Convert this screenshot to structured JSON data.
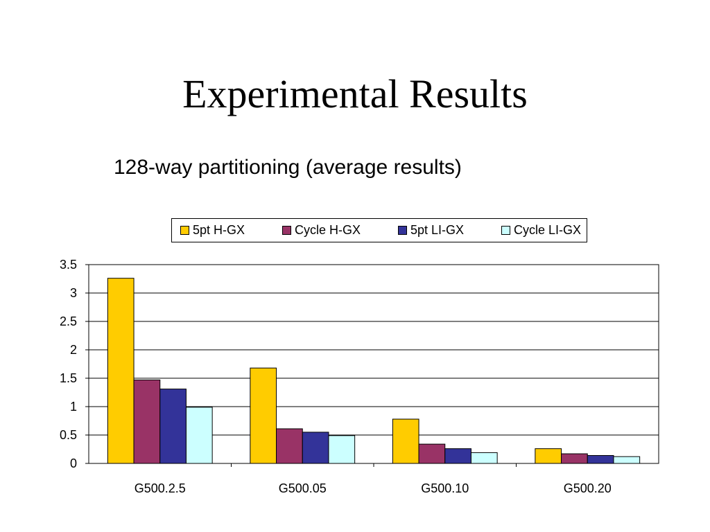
{
  "slide": {
    "title": "Experimental Results",
    "subtitle": "128-way partitioning (average results)"
  },
  "chart_data": {
    "type": "bar",
    "categories": [
      "G500.2.5",
      "G500.05",
      "G500.10",
      "G500.20"
    ],
    "series": [
      {
        "name": "5pt H-GX",
        "color": "#FFCC00",
        "values": [
          3.26,
          1.68,
          0.78,
          0.26
        ]
      },
      {
        "name": "Cycle H-GX",
        "color": "#993366",
        "values": [
          1.47,
          0.61,
          0.34,
          0.17
        ]
      },
      {
        "name": "5pt LI-GX",
        "color": "#333399",
        "values": [
          1.31,
          0.55,
          0.26,
          0.14
        ]
      },
      {
        "name": "Cycle LI-GX",
        "color": "#CCFFFF",
        "values": [
          0.99,
          0.49,
          0.19,
          0.12
        ]
      }
    ],
    "ylim": [
      0,
      3.5
    ],
    "yticks": [
      "0",
      "0.5",
      "1",
      "1.5",
      "2",
      "2.5",
      "3",
      "3.5"
    ],
    "grid": true,
    "legend_position": "top"
  }
}
